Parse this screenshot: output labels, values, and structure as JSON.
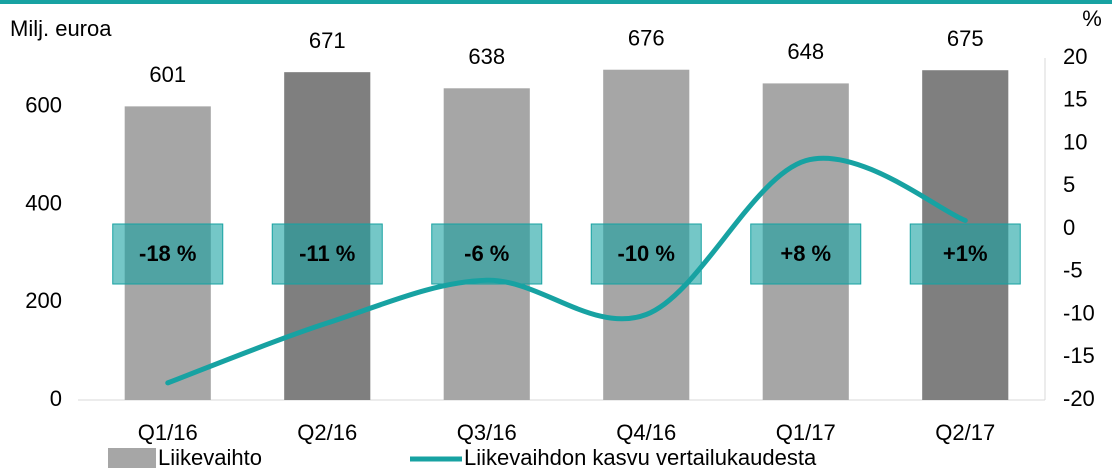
{
  "chart_data": {
    "type": "bar_line",
    "y_label": "Milj. euroa",
    "y2_label": "%",
    "categories": [
      "Q1/16",
      "Q2/16",
      "Q3/16",
      "Q4/16",
      "Q1/17",
      "Q2/17"
    ],
    "series": [
      {
        "name": "Liikevaihto",
        "color": "#a6a6a6",
        "colors": [
          "#a6a6a6",
          "#7f7f7f",
          "#a6a6a6",
          "#a6a6a6",
          "#a6a6a6",
          "#7f7f7f"
        ],
        "values": [
          601,
          671,
          638,
          676,
          648,
          675
        ]
      },
      {
        "name": "Liikevaihdon kasvu vertailukaudesta",
        "color": "#17a2a2",
        "axis": "y2",
        "values": [
          -18,
          -11,
          -6,
          -10,
          8,
          1
        ],
        "value_labels": [
          "-18 %",
          "-11 %",
          "-6 %",
          "-10 %",
          "+8 %",
          "+1%"
        ]
      }
    ],
    "ylim": [
      0,
      700
    ],
    "yticks": [
      0,
      200,
      400,
      600
    ],
    "y2lim": [
      -20,
      20
    ],
    "y2ticks": [
      -20,
      -15,
      -10,
      -5,
      0,
      5,
      10,
      15,
      20
    ]
  }
}
